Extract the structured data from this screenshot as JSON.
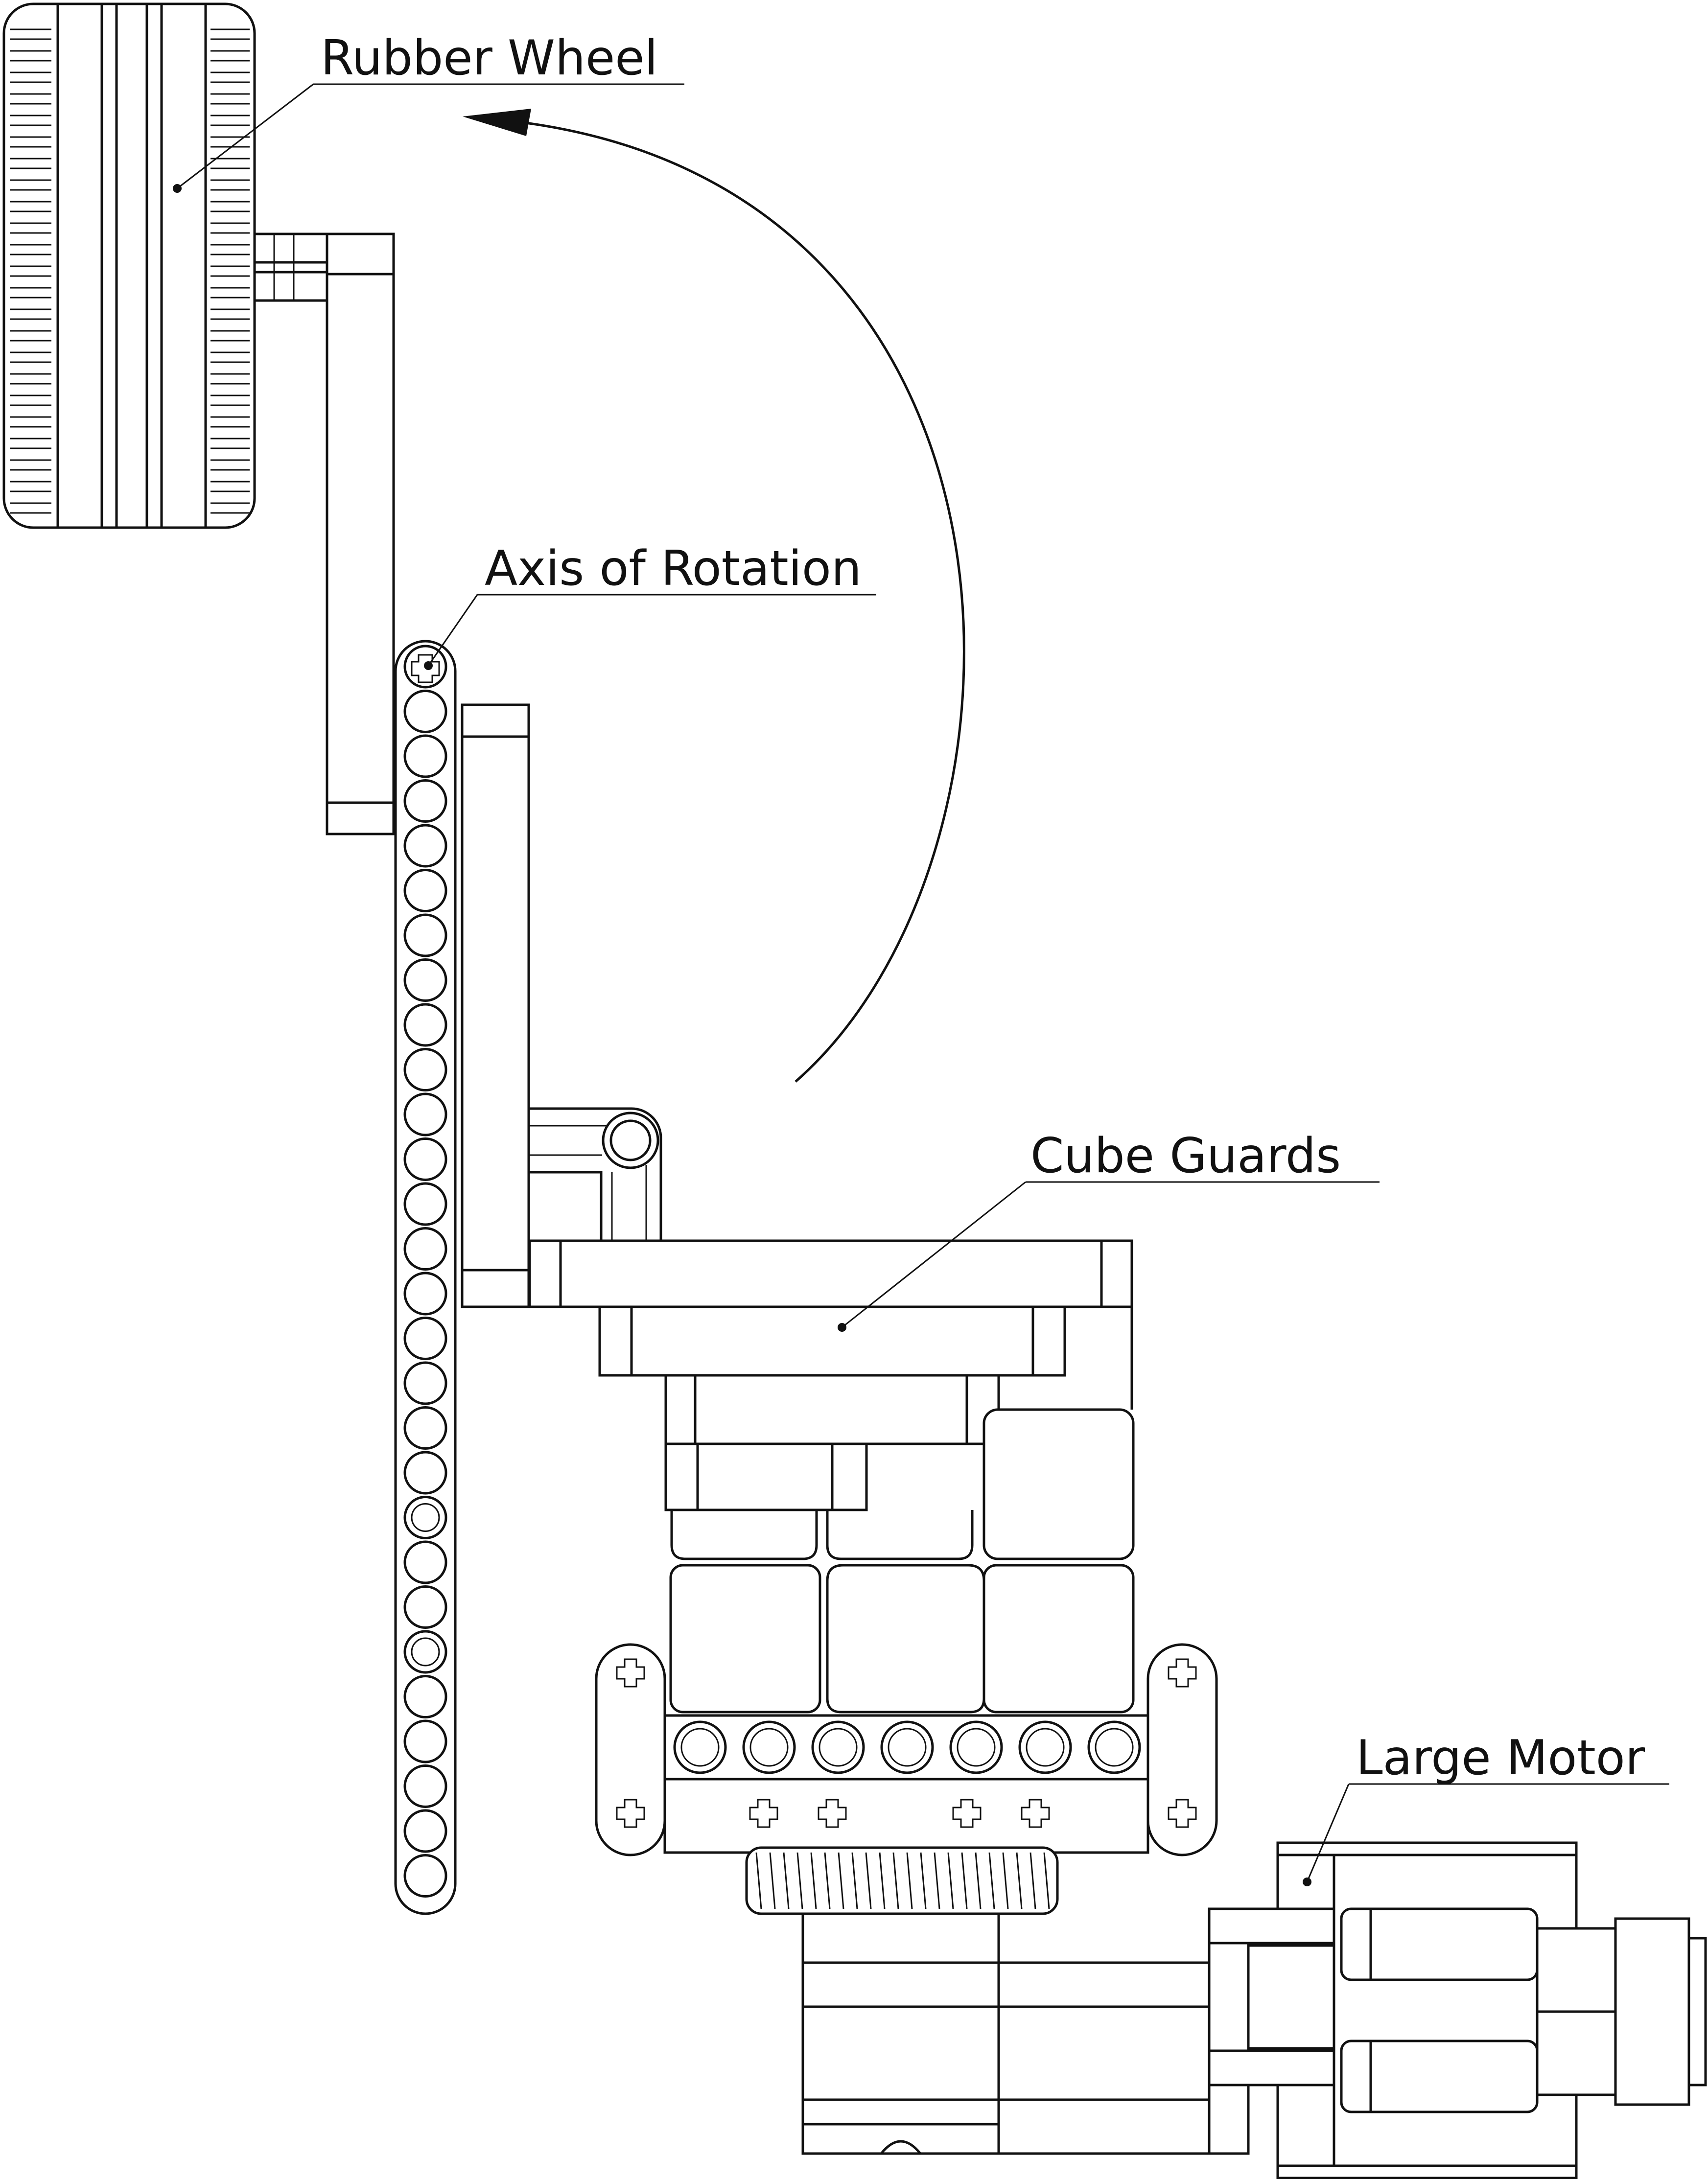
{
  "labels": {
    "rubber_wheel": "Rubber Wheel",
    "axis_of_rotation": "Axis of Rotation",
    "cube_guards": "Cube Guards",
    "large_motor": "Large Motor"
  },
  "colors": {
    "line": "#111111",
    "background": "#ffffff"
  }
}
